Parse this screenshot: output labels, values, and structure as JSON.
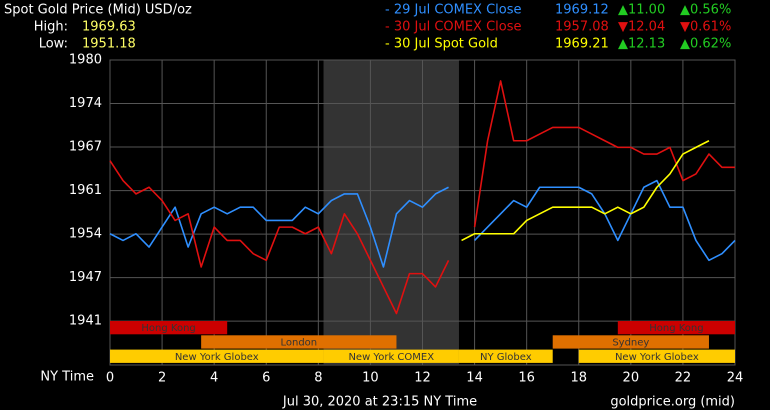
{
  "chart_data": {
    "type": "line",
    "title": "Spot Gold Price (Mid) USD/oz",
    "stats": [
      {
        "label": "High:",
        "value": 1969.63
      },
      {
        "label": "Low:",
        "value": 1951.18
      }
    ],
    "x_label": "NY Time",
    "footer": "Jul 30, 2020 at 23:15 NY Time",
    "source": "goldprice.org (mid)",
    "xlim": [
      0,
      24
    ],
    "xticks": [
      0,
      2,
      4,
      6,
      8,
      10,
      12,
      14,
      16,
      18,
      20,
      22,
      24
    ],
    "ylim": [
      1934.25,
      1980.15
    ],
    "yticks": [
      {
        "value": 1980.15,
        "label": "1980"
      },
      {
        "value": 1973.6,
        "label": "1974"
      },
      {
        "value": 1967.05,
        "label": "1967"
      },
      {
        "value": 1960.5,
        "label": "1961"
      },
      {
        "value": 1953.95,
        "label": "1954"
      },
      {
        "value": 1947.4,
        "label": "1947"
      },
      {
        "value": 1940.85,
        "label": "1941"
      }
    ],
    "grid": true,
    "shaded_region": [
      8.2,
      13.4
    ],
    "x": [
      0,
      0.5,
      1,
      1.5,
      2,
      2.5,
      3,
      3.5,
      4,
      4.5,
      5,
      5.5,
      6,
      6.5,
      7,
      7.5,
      8,
      8.5,
      9,
      9.5,
      10,
      10.5,
      11,
      11.5,
      12,
      12.5,
      13,
      13.5,
      14,
      14.5,
      15,
      15.5,
      16,
      16.5,
      17,
      17.5,
      18,
      18.5,
      19,
      19.5,
      20,
      20.5,
      21,
      21.5,
      22,
      22.5,
      23,
      23.5,
      24
    ],
    "series": [
      {
        "name": "- 29 Jul COMEX Close",
        "color": "#2f8fff",
        "close": 1969.12,
        "change": "▲11.00",
        "change_pct": "▲0.56%",
        "change_color": "#22cc22",
        "values": [
          1954,
          1953,
          1954,
          1952,
          1955,
          1958,
          1952,
          1957,
          1958,
          1957,
          1958,
          1958,
          1956,
          1956,
          1956,
          1958,
          1957,
          1959,
          1960,
          1960,
          1955,
          1949,
          1957,
          1959,
          1958,
          1960,
          1961,
          null,
          1953,
          1955,
          1957,
          1959,
          1958,
          1961,
          1961,
          1961,
          1961,
          1960,
          1957,
          1953,
          1957,
          1961,
          1962,
          1958,
          1958,
          1953,
          1950,
          1951,
          1953
        ]
      },
      {
        "name": "- 30 Jul COMEX Close",
        "color": "#e01010",
        "close": 1957.08,
        "change": "▼12.04",
        "change_pct": "▼0.61%",
        "change_color": "#e01010",
        "values": [
          1965,
          1962,
          1960,
          1961,
          1959,
          1956,
          1957,
          1949,
          1955,
          1953,
          1953,
          1951,
          1950,
          1955,
          1955,
          1954,
          1955,
          1951,
          1957,
          1954,
          1950,
          1946,
          1942,
          1948,
          1948,
          1946,
          1950,
          null,
          1955,
          1968,
          1977,
          1968,
          1968,
          1969,
          1970,
          1970,
          1970,
          1969,
          1968,
          1967,
          1967,
          1966,
          1966,
          1967,
          1962,
          1963,
          1966,
          1964,
          1964
        ]
      },
      {
        "name": "- 30 Jul Spot Gold",
        "color": "#ffff00",
        "close": 1969.21,
        "change": "▲12.13",
        "change_pct": "▲0.62%",
        "change_color": "#22cc22",
        "values": [
          null,
          null,
          null,
          null,
          null,
          null,
          null,
          null,
          null,
          null,
          null,
          null,
          null,
          null,
          null,
          null,
          null,
          null,
          null,
          null,
          null,
          null,
          null,
          null,
          null,
          null,
          null,
          1953,
          1954,
          1954,
          1954,
          1954,
          1956,
          1957,
          1958,
          1958,
          1958,
          1958,
          1957,
          1958,
          1957,
          1958,
          1961,
          1963,
          1966,
          1967,
          1968,
          null,
          null
        ]
      }
    ],
    "sessions": [
      {
        "name": "Hong Kong",
        "start": 0,
        "end": 4.5,
        "row": 0,
        "color": "#cc0000"
      },
      {
        "name": "Hong Kong",
        "start": 19.5,
        "end": 24,
        "row": 0,
        "color": "#cc0000"
      },
      {
        "name": "London",
        "start": 3.5,
        "end": 11,
        "row": 1,
        "color": "#e07000"
      },
      {
        "name": "Sydney",
        "start": 17,
        "end": 23,
        "row": 1,
        "color": "#e07000"
      },
      {
        "name": "New York Globex",
        "start": 0,
        "end": 8.2,
        "row": 2,
        "color": "#ffcc00"
      },
      {
        "name": "New York COMEX",
        "start": 8.2,
        "end": 13.4,
        "row": 2,
        "color": "#ffcc00"
      },
      {
        "name": "NY Globex",
        "start": 13.4,
        "end": 17,
        "row": 2,
        "color": "#ffcc00"
      },
      {
        "name": "New York Globex",
        "start": 18,
        "end": 24,
        "row": 2,
        "color": "#ffcc00"
      }
    ]
  }
}
